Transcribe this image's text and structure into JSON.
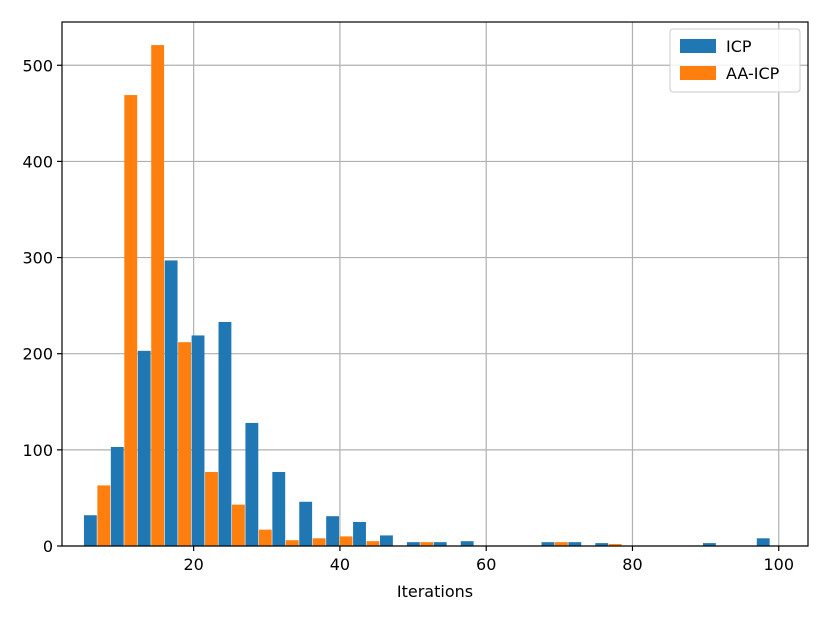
{
  "chart_data": {
    "type": "bar",
    "xlabel": "Iterations",
    "ylabel": "",
    "xlim": [
      2,
      104
    ],
    "ylim": [
      0,
      545
    ],
    "xticks": [
      20,
      40,
      60,
      80,
      100
    ],
    "yticks": [
      0,
      100,
      200,
      300,
      400,
      500
    ],
    "grid": true,
    "legend_position": "top-right",
    "bin_width": 3.68,
    "bin_starts": [
      5.0,
      8.68,
      12.36,
      16.04,
      19.72,
      23.4,
      27.08,
      30.76,
      34.44,
      38.12,
      41.8,
      45.48,
      49.16,
      52.84,
      56.52,
      60.2,
      63.88,
      67.56,
      71.24,
      74.92,
      78.6,
      82.28,
      85.96,
      89.64,
      93.32,
      97.0
    ],
    "series": [
      {
        "name": "ICP",
        "color": "#1f77b4",
        "values": [
          32,
          103,
          203,
          297,
          219,
          233,
          128,
          77,
          46,
          31,
          25,
          11,
          4,
          4,
          5,
          0,
          0,
          4,
          4,
          3,
          0,
          0,
          0,
          3,
          0,
          8
        ]
      },
      {
        "name": "AA-ICP",
        "color": "#ff7f0e",
        "values": [
          63,
          469,
          521,
          212,
          77,
          43,
          17,
          6,
          8,
          10,
          5,
          0,
          4,
          0,
          0,
          0,
          0,
          4,
          0,
          2,
          0,
          0,
          0,
          0,
          0,
          0
        ]
      }
    ]
  }
}
